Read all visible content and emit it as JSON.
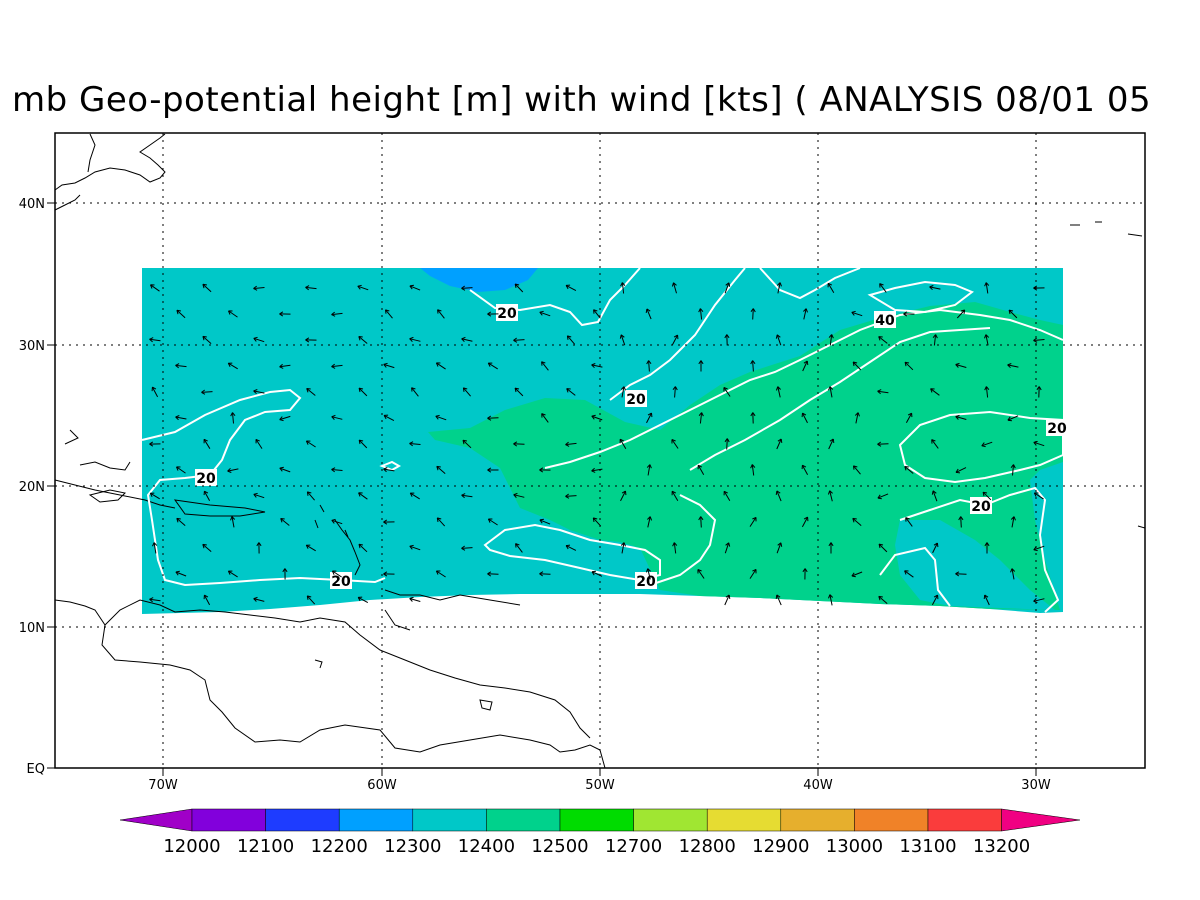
{
  "title": "mb Geo-potential height [m] with wind [kts] ( ANALYSIS 08/01 05",
  "map": {
    "lat_labels": [
      "40N",
      "30N",
      "20N",
      "10N",
      "EQ"
    ],
    "lon_labels": [
      "70W",
      "60W",
      "50W",
      "40W",
      "30W"
    ],
    "lon_range": [
      -75,
      -25
    ],
    "lat_range": [
      0,
      45
    ],
    "data_region": {
      "lon": [
        -71,
        -29
      ],
      "lat": [
        11,
        35.5
      ]
    },
    "contour_labels": [
      "20",
      "20",
      "20",
      "20",
      "20",
      "20",
      "20",
      "40"
    ],
    "grid": true
  },
  "colorbar": {
    "levels": [
      "12000",
      "12100",
      "12200",
      "12300",
      "12400",
      "12500",
      "12700",
      "12800",
      "12900",
      "13000",
      "13100",
      "13200"
    ],
    "colors": [
      "#a000c8",
      "#8200dc",
      "#1e3cff",
      "#00a0ff",
      "#00c8c8",
      "#00d28c",
      "#00dc00",
      "#a0e632",
      "#e6dc32",
      "#e6af2d",
      "#f08228",
      "#fa3c3c",
      "#f00082"
    ]
  }
}
